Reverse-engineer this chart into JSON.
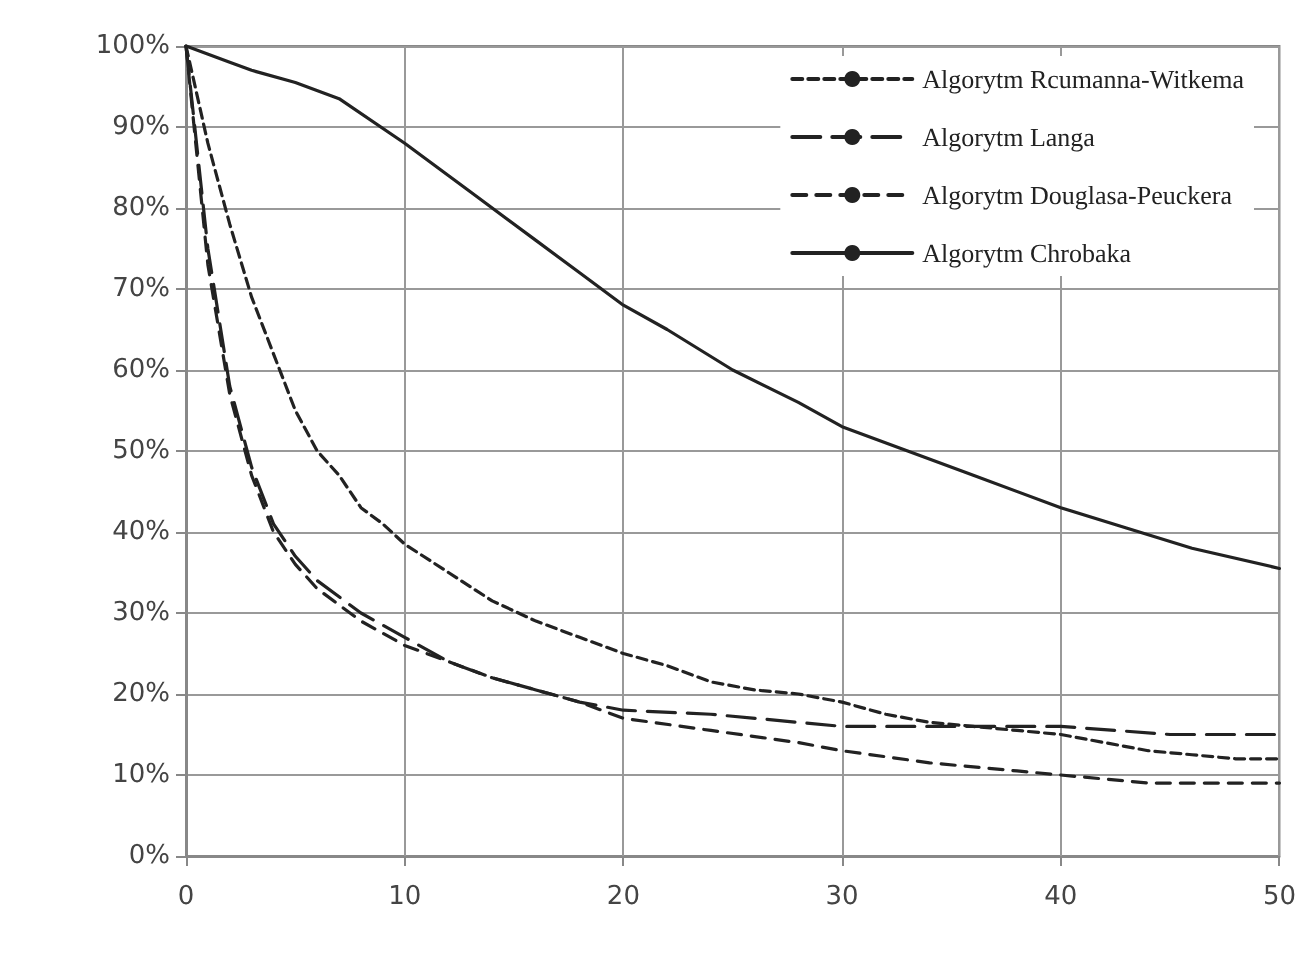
{
  "chart_data": {
    "type": "line",
    "xlim": [
      0,
      50
    ],
    "xticks": [
      0,
      10,
      20,
      30,
      40,
      50
    ],
    "ylim": [
      0,
      100
    ],
    "yticks": [
      {
        "value": 0,
        "label": "0%"
      },
      {
        "value": 10,
        "label": "10%"
      },
      {
        "value": 20,
        "label": "20%"
      },
      {
        "value": 30,
        "label": "30%"
      },
      {
        "value": 40,
        "label": "40%"
      },
      {
        "value": 50,
        "label": "50%"
      },
      {
        "value": 60,
        "label": "60%"
      },
      {
        "value": 70,
        "label": "70%"
      },
      {
        "value": 80,
        "label": "80%"
      },
      {
        "value": 90,
        "label": "90%"
      },
      {
        "value": 100,
        "label": "100%"
      }
    ],
    "grid": true,
    "legend": "top right",
    "marker": "none",
    "series": [
      {
        "name": "Algorytm Rcumanna-Witkema",
        "color": "#222222",
        "line_style": "dotted",
        "x": [
          0,
          1,
          2,
          3,
          4,
          5,
          6,
          7,
          8,
          9,
          10,
          12,
          14,
          16,
          18,
          20,
          22,
          24,
          26,
          28,
          30,
          32,
          34,
          36,
          38,
          40,
          42,
          44,
          46,
          48,
          50
        ],
        "values": [
          100,
          88,
          78,
          69,
          62,
          55,
          50,
          47,
          43,
          41,
          38.5,
          35,
          31.5,
          29,
          27,
          25,
          23.5,
          21.5,
          20.5,
          20,
          19,
          17.5,
          16.5,
          16,
          15.5,
          15,
          14,
          13,
          12.5,
          12,
          12
        ]
      },
      {
        "name": "Algorytm Langa",
        "color": "#222222",
        "line_style": "dashed",
        "x": [
          0,
          1,
          2,
          3,
          4,
          5,
          6,
          7,
          8,
          9,
          10,
          12,
          14,
          16,
          18,
          20,
          24,
          28,
          30,
          35,
          40,
          45,
          50
        ],
        "values": [
          100,
          75,
          58,
          48,
          41,
          37,
          34,
          32,
          30,
          28.5,
          27,
          24,
          22,
          20.5,
          19,
          18,
          17.5,
          16.5,
          16,
          16,
          16,
          15,
          15
        ]
      },
      {
        "name": "Algorytm Douglasa-Peuckera",
        "color": "#222222",
        "line_style": "dashed",
        "x": [
          0,
          1,
          2,
          3,
          4,
          5,
          6,
          7,
          8,
          9,
          10,
          12,
          14,
          16,
          18,
          20,
          24,
          28,
          30,
          34,
          38,
          40,
          44,
          50
        ],
        "values": [
          100,
          73,
          57,
          47,
          40,
          36,
          33,
          31,
          29,
          27.5,
          26,
          24,
          22,
          20.5,
          19,
          17,
          15.5,
          14,
          13,
          11.5,
          10.5,
          10,
          9,
          9
        ]
      },
      {
        "name": "Algorytm Chrobaka",
        "color": "#222222",
        "line_style": "solid",
        "x": [
          0,
          2,
          3,
          5,
          7,
          10,
          13,
          16,
          18,
          20,
          22,
          25,
          28,
          30,
          33,
          36,
          40,
          43,
          46,
          50
        ],
        "values": [
          100,
          98,
          97,
          95.5,
          93.5,
          88,
          82,
          76,
          72,
          68,
          65,
          60,
          56,
          53,
          50,
          47,
          43,
          40.5,
          38,
          35.5
        ]
      }
    ]
  }
}
